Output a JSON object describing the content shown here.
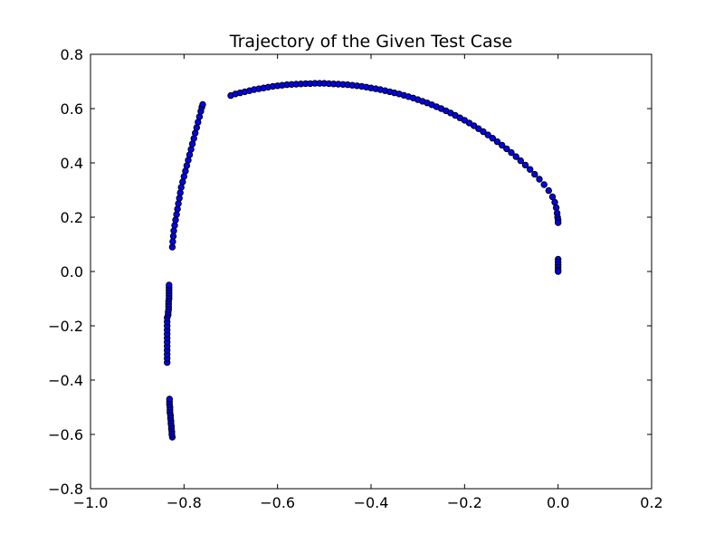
{
  "chart_data": {
    "type": "scatter",
    "title": "Trajectory of the Given Test Case",
    "xlabel": "",
    "ylabel": "",
    "xlim": [
      -1.0,
      0.2
    ],
    "ylim": [
      -0.8,
      0.8
    ],
    "grid": false,
    "marker_color": "#0000ff",
    "marker_edge_color": "#000000",
    "x_ticks": [
      {
        "value": -1.0,
        "label": "−1.0"
      },
      {
        "value": -0.8,
        "label": "−0.8"
      },
      {
        "value": -0.6,
        "label": "−0.6"
      },
      {
        "value": -0.4,
        "label": "−0.4"
      },
      {
        "value": -0.2,
        "label": "−0.2"
      },
      {
        "value": 0.0,
        "label": "0.0"
      },
      {
        "value": 0.2,
        "label": "0.2"
      }
    ],
    "y_ticks": [
      {
        "value": -0.8,
        "label": "−0.8"
      },
      {
        "value": -0.6,
        "label": "−0.6"
      },
      {
        "value": -0.4,
        "label": "−0.4"
      },
      {
        "value": -0.2,
        "label": "−0.2"
      },
      {
        "value": 0.0,
        "label": "0.0"
      },
      {
        "value": 0.2,
        "label": "0.2"
      },
      {
        "value": 0.4,
        "label": "0.4"
      },
      {
        "value": 0.6,
        "label": "0.6"
      },
      {
        "value": 0.8,
        "label": "0.8"
      }
    ],
    "points": [
      [
        -0.825,
        -0.61
      ],
      [
        -0.826,
        -0.6
      ],
      [
        -0.826,
        -0.59
      ],
      [
        -0.827,
        -0.58
      ],
      [
        -0.827,
        -0.57
      ],
      [
        -0.828,
        -0.56
      ],
      [
        -0.828,
        -0.55
      ],
      [
        -0.829,
        -0.54
      ],
      [
        -0.829,
        -0.53
      ],
      [
        -0.83,
        -0.52
      ],
      [
        -0.83,
        -0.51
      ],
      [
        -0.83,
        -0.5
      ],
      [
        -0.831,
        -0.49
      ],
      [
        -0.831,
        -0.48
      ],
      [
        -0.831,
        -0.47
      ],
      [
        -0.836,
        -0.335
      ],
      [
        -0.836,
        -0.32
      ],
      [
        -0.836,
        -0.305
      ],
      [
        -0.836,
        -0.29
      ],
      [
        -0.836,
        -0.275
      ],
      [
        -0.836,
        -0.26
      ],
      [
        -0.836,
        -0.245
      ],
      [
        -0.836,
        -0.23
      ],
      [
        -0.836,
        -0.215
      ],
      [
        -0.836,
        -0.2
      ],
      [
        -0.836,
        -0.185
      ],
      [
        -0.836,
        -0.17
      ],
      [
        -0.834,
        -0.16
      ],
      [
        -0.834,
        -0.15
      ],
      [
        -0.833,
        -0.14
      ],
      [
        -0.833,
        -0.13
      ],
      [
        -0.833,
        -0.12
      ],
      [
        -0.833,
        -0.11
      ],
      [
        -0.832,
        -0.1
      ],
      [
        -0.832,
        -0.09
      ],
      [
        -0.832,
        -0.08
      ],
      [
        -0.832,
        -0.07
      ],
      [
        -0.832,
        -0.06
      ],
      [
        -0.832,
        -0.05
      ],
      [
        -0.825,
        0.09
      ],
      [
        -0.824,
        0.11
      ],
      [
        -0.823,
        0.13
      ],
      [
        -0.822,
        0.15
      ],
      [
        -0.82,
        0.17
      ],
      [
        -0.818,
        0.19
      ],
      [
        -0.816,
        0.21
      ],
      [
        -0.814,
        0.23
      ],
      [
        -0.812,
        0.25
      ],
      [
        -0.81,
        0.27
      ],
      [
        -0.808,
        0.29
      ],
      [
        -0.806,
        0.31
      ],
      [
        -0.803,
        0.33
      ],
      [
        -0.8,
        0.35
      ],
      [
        -0.797,
        0.37
      ],
      [
        -0.794,
        0.39
      ],
      [
        -0.791,
        0.41
      ],
      [
        -0.788,
        0.43
      ],
      [
        -0.785,
        0.45
      ],
      [
        -0.782,
        0.47
      ],
      [
        -0.779,
        0.49
      ],
      [
        -0.776,
        0.51
      ],
      [
        -0.773,
        0.53
      ],
      [
        -0.77,
        0.55
      ],
      [
        -0.767,
        0.57
      ],
      [
        -0.764,
        0.59
      ],
      [
        -0.762,
        0.605
      ],
      [
        -0.76,
        0.615
      ],
      [
        -0.7,
        0.648
      ],
      [
        -0.69,
        0.654
      ],
      [
        -0.68,
        0.658
      ],
      [
        -0.67,
        0.662
      ],
      [
        -0.66,
        0.666
      ],
      [
        -0.65,
        0.67
      ],
      [
        -0.64,
        0.673
      ],
      [
        -0.63,
        0.676
      ],
      [
        -0.62,
        0.679
      ],
      [
        -0.61,
        0.682
      ],
      [
        -0.6,
        0.684
      ],
      [
        -0.59,
        0.686
      ],
      [
        -0.58,
        0.688
      ],
      [
        -0.57,
        0.689
      ],
      [
        -0.56,
        0.69
      ],
      [
        -0.55,
        0.691
      ],
      [
        -0.54,
        0.692
      ],
      [
        -0.53,
        0.692
      ],
      [
        -0.52,
        0.693
      ],
      [
        -0.51,
        0.693
      ],
      [
        -0.5,
        0.693
      ],
      [
        -0.49,
        0.692
      ],
      [
        -0.48,
        0.691
      ],
      [
        -0.47,
        0.69
      ],
      [
        -0.46,
        0.689
      ],
      [
        -0.45,
        0.688
      ],
      [
        -0.44,
        0.686
      ],
      [
        -0.43,
        0.684
      ],
      [
        -0.42,
        0.682
      ],
      [
        -0.41,
        0.679
      ],
      [
        -0.4,
        0.676
      ],
      [
        -0.39,
        0.673
      ],
      [
        -0.38,
        0.67
      ],
      [
        -0.37,
        0.666
      ],
      [
        -0.36,
        0.662
      ],
      [
        -0.35,
        0.658
      ],
      [
        -0.34,
        0.654
      ],
      [
        -0.33,
        0.649
      ],
      [
        -0.32,
        0.644
      ],
      [
        -0.31,
        0.639
      ],
      [
        -0.3,
        0.633
      ],
      [
        -0.29,
        0.627
      ],
      [
        -0.28,
        0.621
      ],
      [
        -0.27,
        0.614
      ],
      [
        -0.26,
        0.607
      ],
      [
        -0.25,
        0.6
      ],
      [
        -0.24,
        0.592
      ],
      [
        -0.23,
        0.584
      ],
      [
        -0.22,
        0.575
      ],
      [
        -0.21,
        0.566
      ],
      [
        -0.2,
        0.557
      ],
      [
        -0.19,
        0.547
      ],
      [
        -0.18,
        0.537
      ],
      [
        -0.17,
        0.526
      ],
      [
        -0.16,
        0.515
      ],
      [
        -0.15,
        0.503
      ],
      [
        -0.14,
        0.491
      ],
      [
        -0.13,
        0.478
      ],
      [
        -0.12,
        0.465
      ],
      [
        -0.11,
        0.452
      ],
      [
        -0.1,
        0.438
      ],
      [
        -0.09,
        0.423
      ],
      [
        -0.08,
        0.408
      ],
      [
        -0.07,
        0.392
      ],
      [
        -0.06,
        0.376
      ],
      [
        -0.05,
        0.358
      ],
      [
        -0.04,
        0.34
      ],
      [
        -0.03,
        0.32
      ],
      [
        -0.02,
        0.298
      ],
      [
        -0.012,
        0.275
      ],
      [
        -0.007,
        0.255
      ],
      [
        -0.004,
        0.235
      ],
      [
        -0.002,
        0.215
      ],
      [
        -0.001,
        0.2
      ],
      [
        0.0,
        0.19
      ],
      [
        0.0,
        0.18
      ],
      [
        0.0,
        0.045
      ],
      [
        0.0,
        0.035
      ],
      [
        0.0,
        0.025
      ],
      [
        0.0,
        0.015
      ],
      [
        0.0,
        0.005
      ],
      [
        0.0,
        0.0
      ]
    ]
  }
}
